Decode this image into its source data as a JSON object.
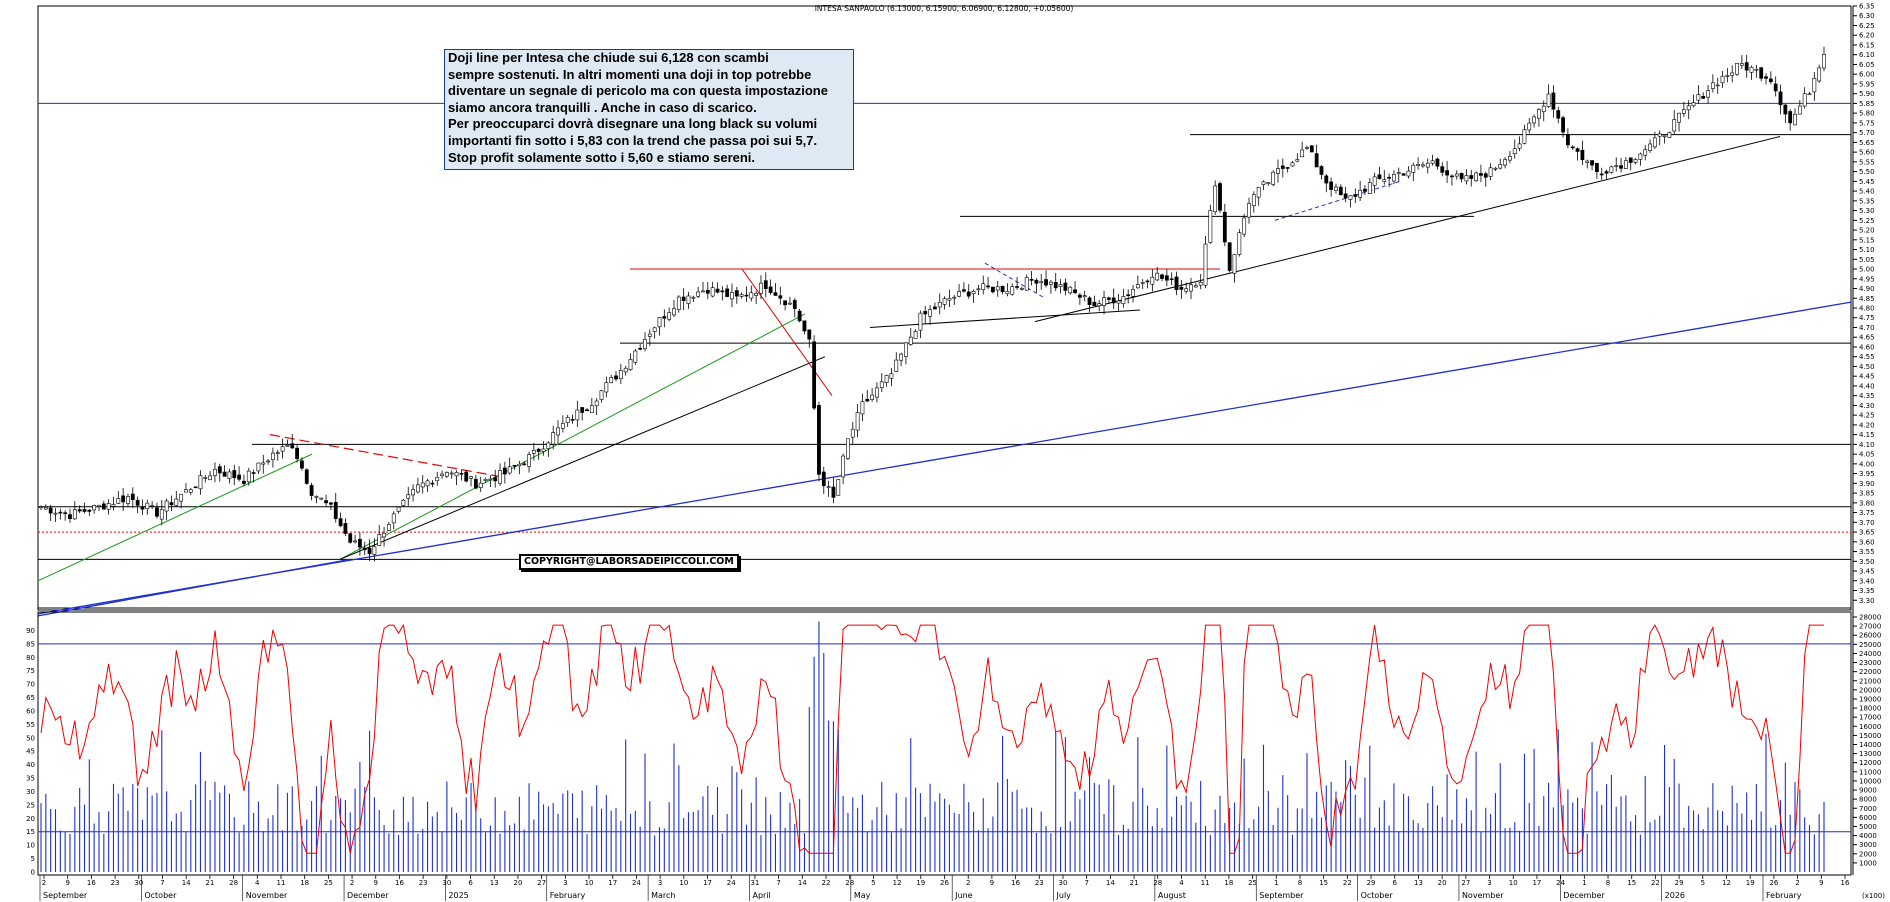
{
  "title": "INTESA SANPAOLO (6.13000, 6.15900, 6.06900, 6.12800, +0.05600)",
  "annotation_lines": [
    "Doji line per Intesa che chiude sui 6,128 con scambi",
    "sempre sostenuti. In altri momenti una doji in top potrebbe",
    "diventare un segnale di pericolo ma con questa impostazione",
    "siamo ancora tranquilli . Anche in caso di scarico.",
    "Per preoccuparci dovrà disegnare una long black su  volumi",
    "importanti fin sotto  i 5,83 con la trend che passa poi sui 5,7.",
    "Stop profit solamente sotto i 5,60 e stiamo sereni."
  ],
  "copyright": "COPYRIGHT@LABORSADEIPICCOLI.COM",
  "volume_axis_unit": "(x100)",
  "colors": {
    "candle": "#000000",
    "rsi_line": "#ee0000",
    "volume_bars": "#1f2fd0",
    "blue_lines": "#1f2fd0",
    "red_lines": "#e60000",
    "green_line": "#1a9a1a",
    "annotation_bg": "#dfe9f3",
    "annotation_border": "#1a3d8f"
  },
  "chart_data": [
    {
      "type": "candlestick",
      "series_name": "INTESA SANPAOLO",
      "last_bar": {
        "open": 6.13,
        "high": 6.159,
        "low": 6.069,
        "close": 6.128,
        "change": 0.056
      },
      "ylim": [
        3.25,
        6.35
      ],
      "y_ticks": [
        "3.30",
        "3.35",
        "3.40",
        "3.45",
        "3.50",
        "3.55",
        "3.60",
        "3.65",
        "3.70",
        "3.75",
        "3.80",
        "3.85",
        "3.90",
        "3.95",
        "4.00",
        "4.05",
        "4.10",
        "4.15",
        "4.20",
        "4.25",
        "4.30",
        "4.35",
        "4.40",
        "4.45",
        "4.50",
        "4.55",
        "4.60",
        "4.65",
        "4.70",
        "4.75",
        "4.80",
        "4.85",
        "4.90",
        "4.95",
        "5.00",
        "5.05",
        "5.10",
        "5.15",
        "5.20",
        "5.25",
        "5.30",
        "5.35",
        "5.40",
        "5.45",
        "5.50",
        "5.55",
        "5.60",
        "5.65",
        "5.70",
        "5.75",
        "5.80",
        "5.85",
        "5.90",
        "5.95",
        "6.00",
        "6.05",
        "6.10",
        "6.15",
        "6.20",
        "6.25",
        "6.30",
        "6.35"
      ],
      "approx_close_path": [
        [
          0,
          3.78
        ],
        [
          6,
          3.74
        ],
        [
          12,
          3.78
        ],
        [
          18,
          3.83
        ],
        [
          24,
          3.75
        ],
        [
          30,
          3.86
        ],
        [
          36,
          3.97
        ],
        [
          42,
          3.92
        ],
        [
          48,
          4.05
        ],
        [
          52,
          4.1
        ],
        [
          56,
          3.86
        ],
        [
          60,
          3.77
        ],
        [
          64,
          3.6
        ],
        [
          68,
          3.55
        ],
        [
          72,
          3.7
        ],
        [
          78,
          3.88
        ],
        [
          84,
          3.97
        ],
        [
          90,
          3.9
        ],
        [
          96,
          3.95
        ],
        [
          102,
          4.05
        ],
        [
          108,
          4.2
        ],
        [
          114,
          4.32
        ],
        [
          120,
          4.48
        ],
        [
          126,
          4.68
        ],
        [
          132,
          4.85
        ],
        [
          138,
          4.9
        ],
        [
          144,
          4.85
        ],
        [
          150,
          4.92
        ],
        [
          156,
          4.8
        ],
        [
          159,
          4.62
        ],
        [
          161,
          3.95
        ],
        [
          164,
          3.82
        ],
        [
          167,
          4.12
        ],
        [
          170,
          4.3
        ],
        [
          176,
          4.46
        ],
        [
          182,
          4.75
        ],
        [
          188,
          4.85
        ],
        [
          194,
          4.9
        ],
        [
          200,
          4.9
        ],
        [
          206,
          4.95
        ],
        [
          212,
          4.9
        ],
        [
          218,
          4.82
        ],
        [
          224,
          4.86
        ],
        [
          230,
          4.98
        ],
        [
          236,
          4.9
        ],
        [
          240,
          4.95
        ],
        [
          243,
          5.45
        ],
        [
          246,
          5.0
        ],
        [
          250,
          5.35
        ],
        [
          256,
          5.5
        ],
        [
          262,
          5.62
        ],
        [
          266,
          5.45
        ],
        [
          270,
          5.35
        ],
        [
          276,
          5.45
        ],
        [
          282,
          5.5
        ],
        [
          288,
          5.55
        ],
        [
          294,
          5.45
        ],
        [
          300,
          5.5
        ],
        [
          306,
          5.65
        ],
        [
          312,
          5.9
        ],
        [
          316,
          5.65
        ],
        [
          322,
          5.5
        ],
        [
          328,
          5.55
        ],
        [
          334,
          5.65
        ],
        [
          340,
          5.8
        ],
        [
          346,
          5.95
        ],
        [
          352,
          6.05
        ],
        [
          358,
          5.98
        ],
        [
          362,
          5.75
        ],
        [
          366,
          5.92
        ],
        [
          369,
          6.12
        ]
      ]
    },
    {
      "type": "line",
      "series_name": "RSI",
      "ylim": [
        0,
        95
      ],
      "y_ticks": [
        "0",
        "5",
        "10",
        "15",
        "20",
        "25",
        "30",
        "35",
        "40",
        "45",
        "50",
        "55",
        "60",
        "65",
        "70",
        "75",
        "80",
        "85",
        "90"
      ],
      "reference_lines": [
        15,
        85
      ]
    },
    {
      "type": "bar",
      "series_name": "Volume",
      "ylim": [
        0,
        28000
      ],
      "y_ticks": [
        "1000",
        "2000",
        "3000",
        "4000",
        "5000",
        "6000",
        "7000",
        "8000",
        "9000",
        "10000",
        "11000",
        "12000",
        "13000",
        "14000",
        "15000",
        "16000",
        "17000",
        "18000",
        "19000",
        "20000",
        "21000",
        "22000",
        "23000",
        "24000",
        "25000",
        "26000",
        "27000",
        "28000"
      ]
    }
  ],
  "x_axis": {
    "day_labels": [
      "2",
      "9",
      "16",
      "23",
      "30",
      "7",
      "14",
      "21",
      "28",
      "4",
      "11",
      "18",
      "25",
      "2",
      "9",
      "16",
      "23",
      "30",
      "6",
      "13",
      "20",
      "27",
      "3",
      "10",
      "17",
      "24",
      "3",
      "10",
      "17",
      "24",
      "31",
      "7",
      "14",
      "22",
      "28",
      "5",
      "12",
      "19",
      "26",
      "2",
      "9",
      "16",
      "23",
      "30",
      "7",
      "14",
      "21",
      "28",
      "4",
      "11",
      "18",
      "25",
      "1",
      "8",
      "15",
      "22",
      "29",
      "6",
      "13",
      "20",
      "27",
      "3",
      "10",
      "17",
      "24",
      "1",
      "8",
      "15",
      "22",
      "29",
      "5",
      "12",
      "19",
      "26",
      "2",
      "9",
      "16"
    ],
    "month_labels": [
      "September",
      "October",
      "November",
      "December",
      "2025",
      "February",
      "March",
      "April",
      "May",
      "June",
      "July",
      "August",
      "September",
      "October",
      "November",
      "December",
      "2026",
      "February"
    ]
  }
}
